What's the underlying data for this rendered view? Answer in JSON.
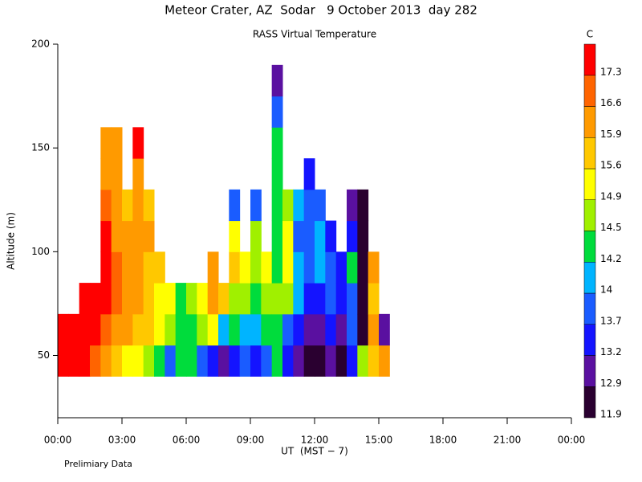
{
  "chart_data": {
    "type": "heatmap",
    "title": "Meteor Crater, AZ  Sodar   9 October 2013  day 282",
    "subtitle": "RASS Virtual Temperature",
    "y_label": "Altitude (m)",
    "x_label": "UT  (MST − 7)",
    "note": "Prelimiary Data",
    "xlim": [
      0,
      24
    ],
    "xticks": [
      {
        "value": 0,
        "label": "00:00"
      },
      {
        "value": 3,
        "label": "03:00"
      },
      {
        "value": 6,
        "label": "06:00"
      },
      {
        "value": 9,
        "label": "09:00"
      },
      {
        "value": 12,
        "label": "12:00"
      },
      {
        "value": 15,
        "label": "15:00"
      },
      {
        "value": 18,
        "label": "18:00"
      },
      {
        "value": 21,
        "label": "21:00"
      },
      {
        "value": 24,
        "label": "00:00"
      }
    ],
    "ylim": [
      20,
      200
    ],
    "yticks": [
      50,
      100,
      150,
      200
    ],
    "x": [
      0,
      0.5,
      1,
      1.5,
      2,
      2.5,
      3,
      3.5,
      4,
      4.5,
      5,
      5.5,
      6,
      6.5,
      7,
      7.5,
      8,
      8.5,
      9,
      9.5,
      10,
      10.5,
      11,
      11.5,
      12,
      12.5,
      13,
      13.5,
      14,
      14.5,
      15
    ],
    "y": [
      40,
      55,
      70,
      85,
      100,
      115,
      130,
      145,
      160,
      175
    ],
    "z": [
      [
        17.5,
        17.5,
        null,
        null,
        null,
        null,
        null,
        null,
        null,
        null
      ],
      [
        17.5,
        17.5,
        null,
        null,
        null,
        null,
        null,
        null,
        null,
        null
      ],
      [
        17.5,
        17.5,
        17.5,
        null,
        null,
        null,
        null,
        null,
        null,
        null
      ],
      [
        17.0,
        17.5,
        17.5,
        null,
        null,
        null,
        null,
        null,
        null,
        null
      ],
      [
        16.2,
        17.0,
        17.5,
        17.5,
        17.5,
        17.0,
        16.2,
        16.2,
        null,
        null
      ],
      [
        15.7,
        16.2,
        17.0,
        17.0,
        16.2,
        16.2,
        16.2,
        16.2,
        null,
        null
      ],
      [
        15.2,
        16.2,
        16.2,
        16.2,
        16.2,
        15.7,
        null,
        null,
        null,
        null
      ],
      [
        15.2,
        15.7,
        16.2,
        16.2,
        16.2,
        16.2,
        16.2,
        17.5,
        null,
        null
      ],
      [
        14.7,
        15.7,
        15.7,
        15.7,
        16.2,
        15.7,
        null,
        null,
        null,
        null
      ],
      [
        14.3,
        15.2,
        15.2,
        15.7,
        null,
        null,
        null,
        null,
        null,
        null
      ],
      [
        13.8,
        14.7,
        15.2,
        null,
        null,
        null,
        null,
        null,
        null,
        null
      ],
      [
        14.3,
        14.3,
        14.3,
        null,
        null,
        null,
        null,
        null,
        null,
        null
      ],
      [
        14.3,
        14.3,
        14.7,
        null,
        null,
        null,
        null,
        null,
        null,
        null
      ],
      [
        13.8,
        14.7,
        15.2,
        null,
        null,
        null,
        null,
        null,
        null,
        null
      ],
      [
        13.4,
        15.2,
        16.2,
        16.2,
        null,
        null,
        null,
        null,
        null,
        null
      ],
      [
        13.0,
        14.1,
        15.7,
        null,
        null,
        null,
        null,
        null,
        null,
        null
      ],
      [
        13.4,
        14.3,
        14.7,
        15.7,
        15.2,
        13.8,
        null,
        null,
        null,
        null
      ],
      [
        13.8,
        14.1,
        14.7,
        15.2,
        null,
        null,
        null,
        null,
        null,
        null
      ],
      [
        13.4,
        14.1,
        14.3,
        14.7,
        14.7,
        13.8,
        null,
        null,
        null,
        null
      ],
      [
        13.8,
        14.3,
        14.7,
        15.2,
        null,
        null,
        null,
        null,
        null,
        null
      ],
      [
        14.3,
        14.3,
        14.7,
        14.3,
        14.3,
        14.3,
        14.3,
        14.3,
        13.8,
        13.0
      ],
      [
        13.4,
        13.8,
        14.7,
        15.2,
        15.2,
        14.7,
        null,
        null,
        null,
        null
      ],
      [
        13.0,
        13.4,
        14.1,
        14.1,
        13.8,
        14.1,
        null,
        null,
        null,
        null
      ],
      [
        12.5,
        13.0,
        13.4,
        13.8,
        13.8,
        13.8,
        13.4,
        null,
        null,
        null
      ],
      [
        12.5,
        13.0,
        13.4,
        14.1,
        14.1,
        13.8,
        null,
        null,
        null,
        null
      ],
      [
        13.0,
        13.4,
        13.8,
        13.8,
        13.4,
        null,
        null,
        null,
        null,
        null
      ],
      [
        12.5,
        13.0,
        13.4,
        13.4,
        null,
        null,
        null,
        null,
        null,
        null
      ],
      [
        13.4,
        13.8,
        13.8,
        14.3,
        13.4,
        13.0,
        null,
        null,
        null,
        null
      ],
      [
        14.7,
        12.5,
        12.5,
        12.5,
        12.5,
        12.5,
        null,
        null,
        null,
        null
      ],
      [
        15.7,
        16.2,
        15.7,
        16.2,
        null,
        null,
        null,
        null,
        null,
        null
      ],
      [
        16.2,
        13.0,
        null,
        null,
        null,
        null,
        null,
        null,
        null,
        null
      ]
    ],
    "colorbar": {
      "label": "C",
      "levels": [
        11.9,
        12.9,
        13.2,
        13.7,
        14.0,
        14.2,
        14.5,
        14.9,
        15.6,
        15.9,
        16.6,
        17.3
      ],
      "colors": [
        "#2a0030",
        "#5a10a0",
        "#1414ff",
        "#1a5cff",
        "#00b4ff",
        "#00dc3c",
        "#a0f000",
        "#ffff00",
        "#ffc800",
        "#ff9a00",
        "#ff6400",
        "#ff0000"
      ]
    }
  }
}
